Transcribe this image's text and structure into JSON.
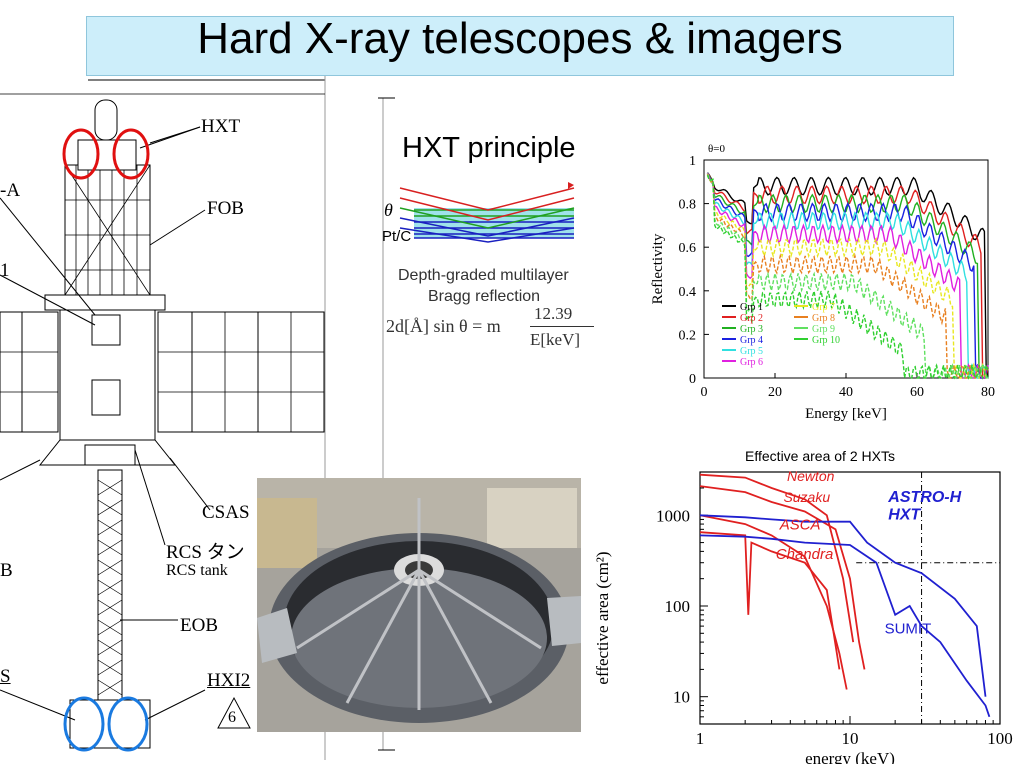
{
  "title": "Hard X-ray telescopes & imagers",
  "spacecraft": {
    "labels": {
      "hxt": "HXT",
      "fob": "FOB",
      "csas": "CSAS",
      "rcs_jp": "RCS タン",
      "rcs_en": "RCS tank",
      "eob": "EOB",
      "hxi2": "HXI2",
      "hxi2_num": "6",
      "left_a": "-A",
      "left_b": "B",
      "left_s": "S",
      "left_1": "1"
    },
    "marker_colors": {
      "hxt": "#e01010",
      "hxi": "#1a7ae0"
    }
  },
  "principle": {
    "heading": "HXT principle",
    "theta": "θ",
    "material": "Pt/C",
    "caption_line1": "Depth-graded multilayer",
    "caption_line2": "Bragg reflection",
    "equation_left": "2d[Å] sin θ = m",
    "equation_num": "12.39",
    "equation_den": "E[keV]"
  },
  "chart_data": [
    {
      "type": "line",
      "title": "",
      "xlabel": "Energy [keV]",
      "ylabel": "Reflectivity",
      "xlim": [
        0,
        80
      ],
      "ylim": [
        0,
        1
      ],
      "x_ticks": [
        "0",
        "20",
        "40",
        "60",
        "80"
      ],
      "y_ticks": [
        "0",
        "0.2",
        "0.4",
        "0.6",
        "0.8",
        "1"
      ],
      "top_cut_label": "θ=0",
      "legend_position": "bottom-left",
      "series": [
        {
          "name": "Grp 1",
          "color": "#000000",
          "cutoff_keV": 79,
          "plateau": 0.88
        },
        {
          "name": "Grp 2",
          "color": "#e02020",
          "cutoff_keV": 78,
          "plateau": 0.84
        },
        {
          "name": "Grp 3",
          "color": "#20b020",
          "cutoff_keV": 77,
          "plateau": 0.8
        },
        {
          "name": "Grp 4",
          "color": "#1a20e0",
          "cutoff_keV": 76,
          "plateau": 0.76
        },
        {
          "name": "Grp 5",
          "color": "#30e0e0",
          "cutoff_keV": 74,
          "plateau": 0.72
        },
        {
          "name": "Grp 6",
          "color": "#e020e0",
          "cutoff_keV": 72,
          "plateau": 0.66
        },
        {
          "name": "Grp 7",
          "color": "#e8e820",
          "cutoff_keV": 70,
          "plateau": 0.6
        },
        {
          "name": "Grp 8",
          "color": "#e88020",
          "cutoff_keV": 68,
          "plateau": 0.52
        },
        {
          "name": "Grp 9",
          "color": "#60e060",
          "cutoff_keV": 62,
          "plateau": 0.44
        },
        {
          "name": "Grp 10",
          "color": "#30d030",
          "cutoff_keV": 56,
          "plateau": 0.36
        }
      ]
    },
    {
      "type": "line",
      "title": "Effective area of 2 HXTs",
      "xlabel": "energy (keV)",
      "ylabel": "effective area (cm²)",
      "xscale": "log",
      "yscale": "log",
      "xlim": [
        1,
        100
      ],
      "ylim": [
        5,
        3000
      ],
      "x_ticks": [
        "1",
        "10",
        "100"
      ],
      "y_ticks": [
        "10",
        "100",
        "1000"
      ],
      "reference_lines": {
        "x": 30,
        "y": 300
      },
      "series": [
        {
          "name": "Newton",
          "color": "#e02020",
          "x": [
            1,
            2,
            3,
            5,
            7,
            9,
            10.5
          ],
          "y": [
            2800,
            2600,
            2000,
            1500,
            1000,
            200,
            40
          ]
        },
        {
          "name": "Suzaku",
          "color": "#e02020",
          "x": [
            1,
            2,
            3,
            5,
            8,
            10,
            11.5,
            12.5
          ],
          "y": [
            2100,
            1800,
            1400,
            1100,
            700,
            200,
            40,
            20
          ]
        },
        {
          "name": "ASCA",
          "color": "#e02020",
          "x": [
            1,
            2,
            3,
            5,
            7,
            8.5,
            9.5
          ],
          "y": [
            1000,
            800,
            600,
            350,
            100,
            30,
            12
          ]
        },
        {
          "name": "Chandra",
          "color": "#e02020",
          "x": [
            1,
            2,
            2.1,
            2.2,
            3,
            5,
            7,
            8.5
          ],
          "y": [
            650,
            600,
            80,
            500,
            400,
            300,
            150,
            20
          ]
        },
        {
          "name": "ASTRO-H HXT",
          "color": "#2020d0",
          "x": [
            1,
            2,
            3,
            5,
            10,
            11,
            13,
            20,
            30,
            50,
            70,
            80
          ],
          "y": [
            1000,
            950,
            900,
            850,
            850,
            700,
            500,
            300,
            230,
            120,
            60,
            10
          ]
        },
        {
          "name": "SUMIT",
          "color": "#2020d0",
          "x": [
            1,
            2,
            3,
            5,
            10,
            15,
            20,
            25,
            30,
            40,
            60,
            80,
            85
          ],
          "y": [
            600,
            580,
            550,
            500,
            470,
            300,
            80,
            100,
            60,
            40,
            15,
            8,
            6
          ]
        }
      ],
      "labels": [
        {
          "text": "Newton",
          "color": "#e02020"
        },
        {
          "text": "Suzaku",
          "color": "#e02020"
        },
        {
          "text": "ASCA",
          "color": "#e02020"
        },
        {
          "text": "Chandra",
          "color": "#e02020"
        },
        {
          "text": "ASTRO-H",
          "color": "#2020d0"
        },
        {
          "text": "HXT",
          "color": "#2020d0"
        },
        {
          "text": "SUMIT",
          "color": "#2020d0"
        }
      ]
    }
  ]
}
